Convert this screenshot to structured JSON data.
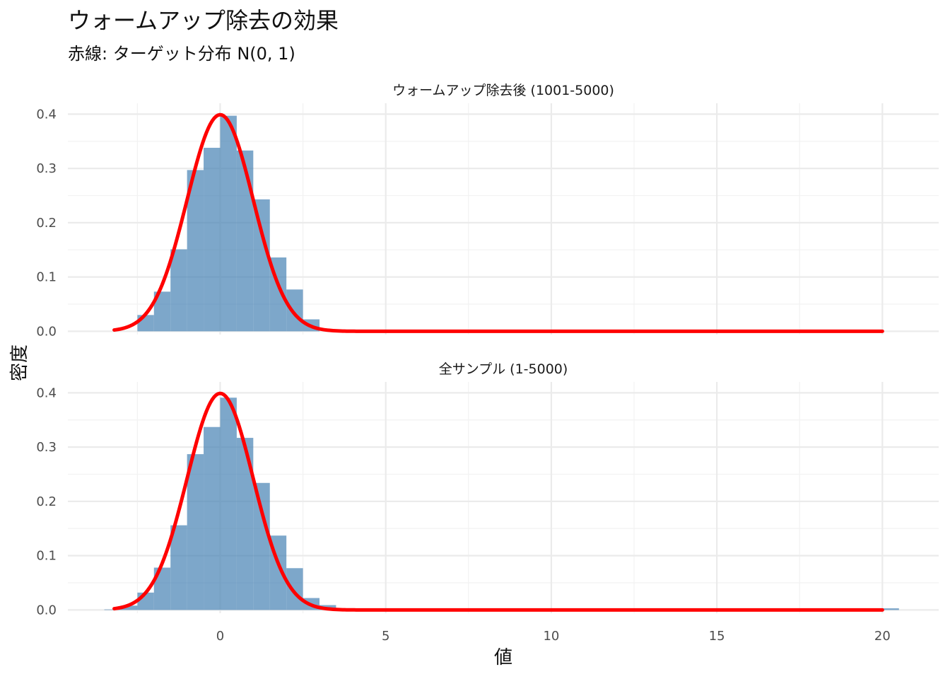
{
  "title": "ウォームアップ除去の効果",
  "subtitle": "赤線: ターゲット分布 N(0, 1)",
  "chart_data": [
    {
      "type": "bar",
      "panel_label": "ウォームアップ除去後 (1001-5000)",
      "bin_width": 0.5,
      "bins": [
        {
          "x": -2.25,
          "density": 0.03
        },
        {
          "x": -1.75,
          "density": 0.073
        },
        {
          "x": -1.25,
          "density": 0.151
        },
        {
          "x": -0.75,
          "density": 0.297
        },
        {
          "x": -0.25,
          "density": 0.338
        },
        {
          "x": 0.25,
          "density": 0.397
        },
        {
          "x": 0.75,
          "density": 0.333
        },
        {
          "x": 1.25,
          "density": 0.243
        },
        {
          "x": 1.75,
          "density": 0.136
        },
        {
          "x": 2.25,
          "density": 0.077
        },
        {
          "x": 2.75,
          "density": 0.022
        }
      ],
      "curve": {
        "name": "N(0, 1)",
        "x_range": [
          -3.2,
          20
        ],
        "color": "#ff0000"
      },
      "bar_color": "#4682b4",
      "xlim": [
        -4.6,
        21.7
      ],
      "ylim": [
        -0.006,
        0.42
      ],
      "y_ticks": [
        "0.0",
        "0.1",
        "0.2",
        "0.3",
        "0.4"
      ],
      "y_tick_values": [
        0,
        0.1,
        0.2,
        0.3,
        0.4
      ]
    },
    {
      "type": "bar",
      "panel_label": "全サンプル (1-5000)",
      "bin_width": 0.5,
      "bins": [
        {
          "x": -3.25,
          "density": 0.001
        },
        {
          "x": -2.75,
          "density": 0.008
        },
        {
          "x": -2.25,
          "density": 0.032
        },
        {
          "x": -1.75,
          "density": 0.078
        },
        {
          "x": -1.25,
          "density": 0.156
        },
        {
          "x": -0.75,
          "density": 0.287
        },
        {
          "x": -0.25,
          "density": 0.337
        },
        {
          "x": 0.25,
          "density": 0.391
        },
        {
          "x": 0.75,
          "density": 0.317
        },
        {
          "x": 1.25,
          "density": 0.234
        },
        {
          "x": 1.75,
          "density": 0.137
        },
        {
          "x": 2.25,
          "density": 0.077
        },
        {
          "x": 2.75,
          "density": 0.022
        },
        {
          "x": 3.25,
          "density": 0.009
        },
        {
          "x": 3.75,
          "density": 0.002
        },
        {
          "x": 4.25,
          "density": 0.003
        },
        {
          "x": 4.75,
          "density": 0.001
        },
        {
          "x": 20.25,
          "density": 0.003
        }
      ],
      "curve": {
        "name": "N(0, 1)",
        "x_range": [
          -3.2,
          20
        ],
        "color": "#ff0000"
      },
      "bar_color": "#4682b4",
      "xlim": [
        -4.6,
        21.7
      ],
      "ylim": [
        -0.006,
        0.42
      ],
      "y_ticks": [
        "0.0",
        "0.1",
        "0.2",
        "0.3",
        "0.4"
      ],
      "y_tick_values": [
        0,
        0.1,
        0.2,
        0.3,
        0.4
      ]
    }
  ],
  "x_ticks": [
    "0",
    "5",
    "10",
    "15",
    "20"
  ],
  "x_tick_values": [
    0,
    5,
    10,
    15,
    20
  ],
  "xlabel": "値",
  "ylabel": "密度",
  "grid": true
}
